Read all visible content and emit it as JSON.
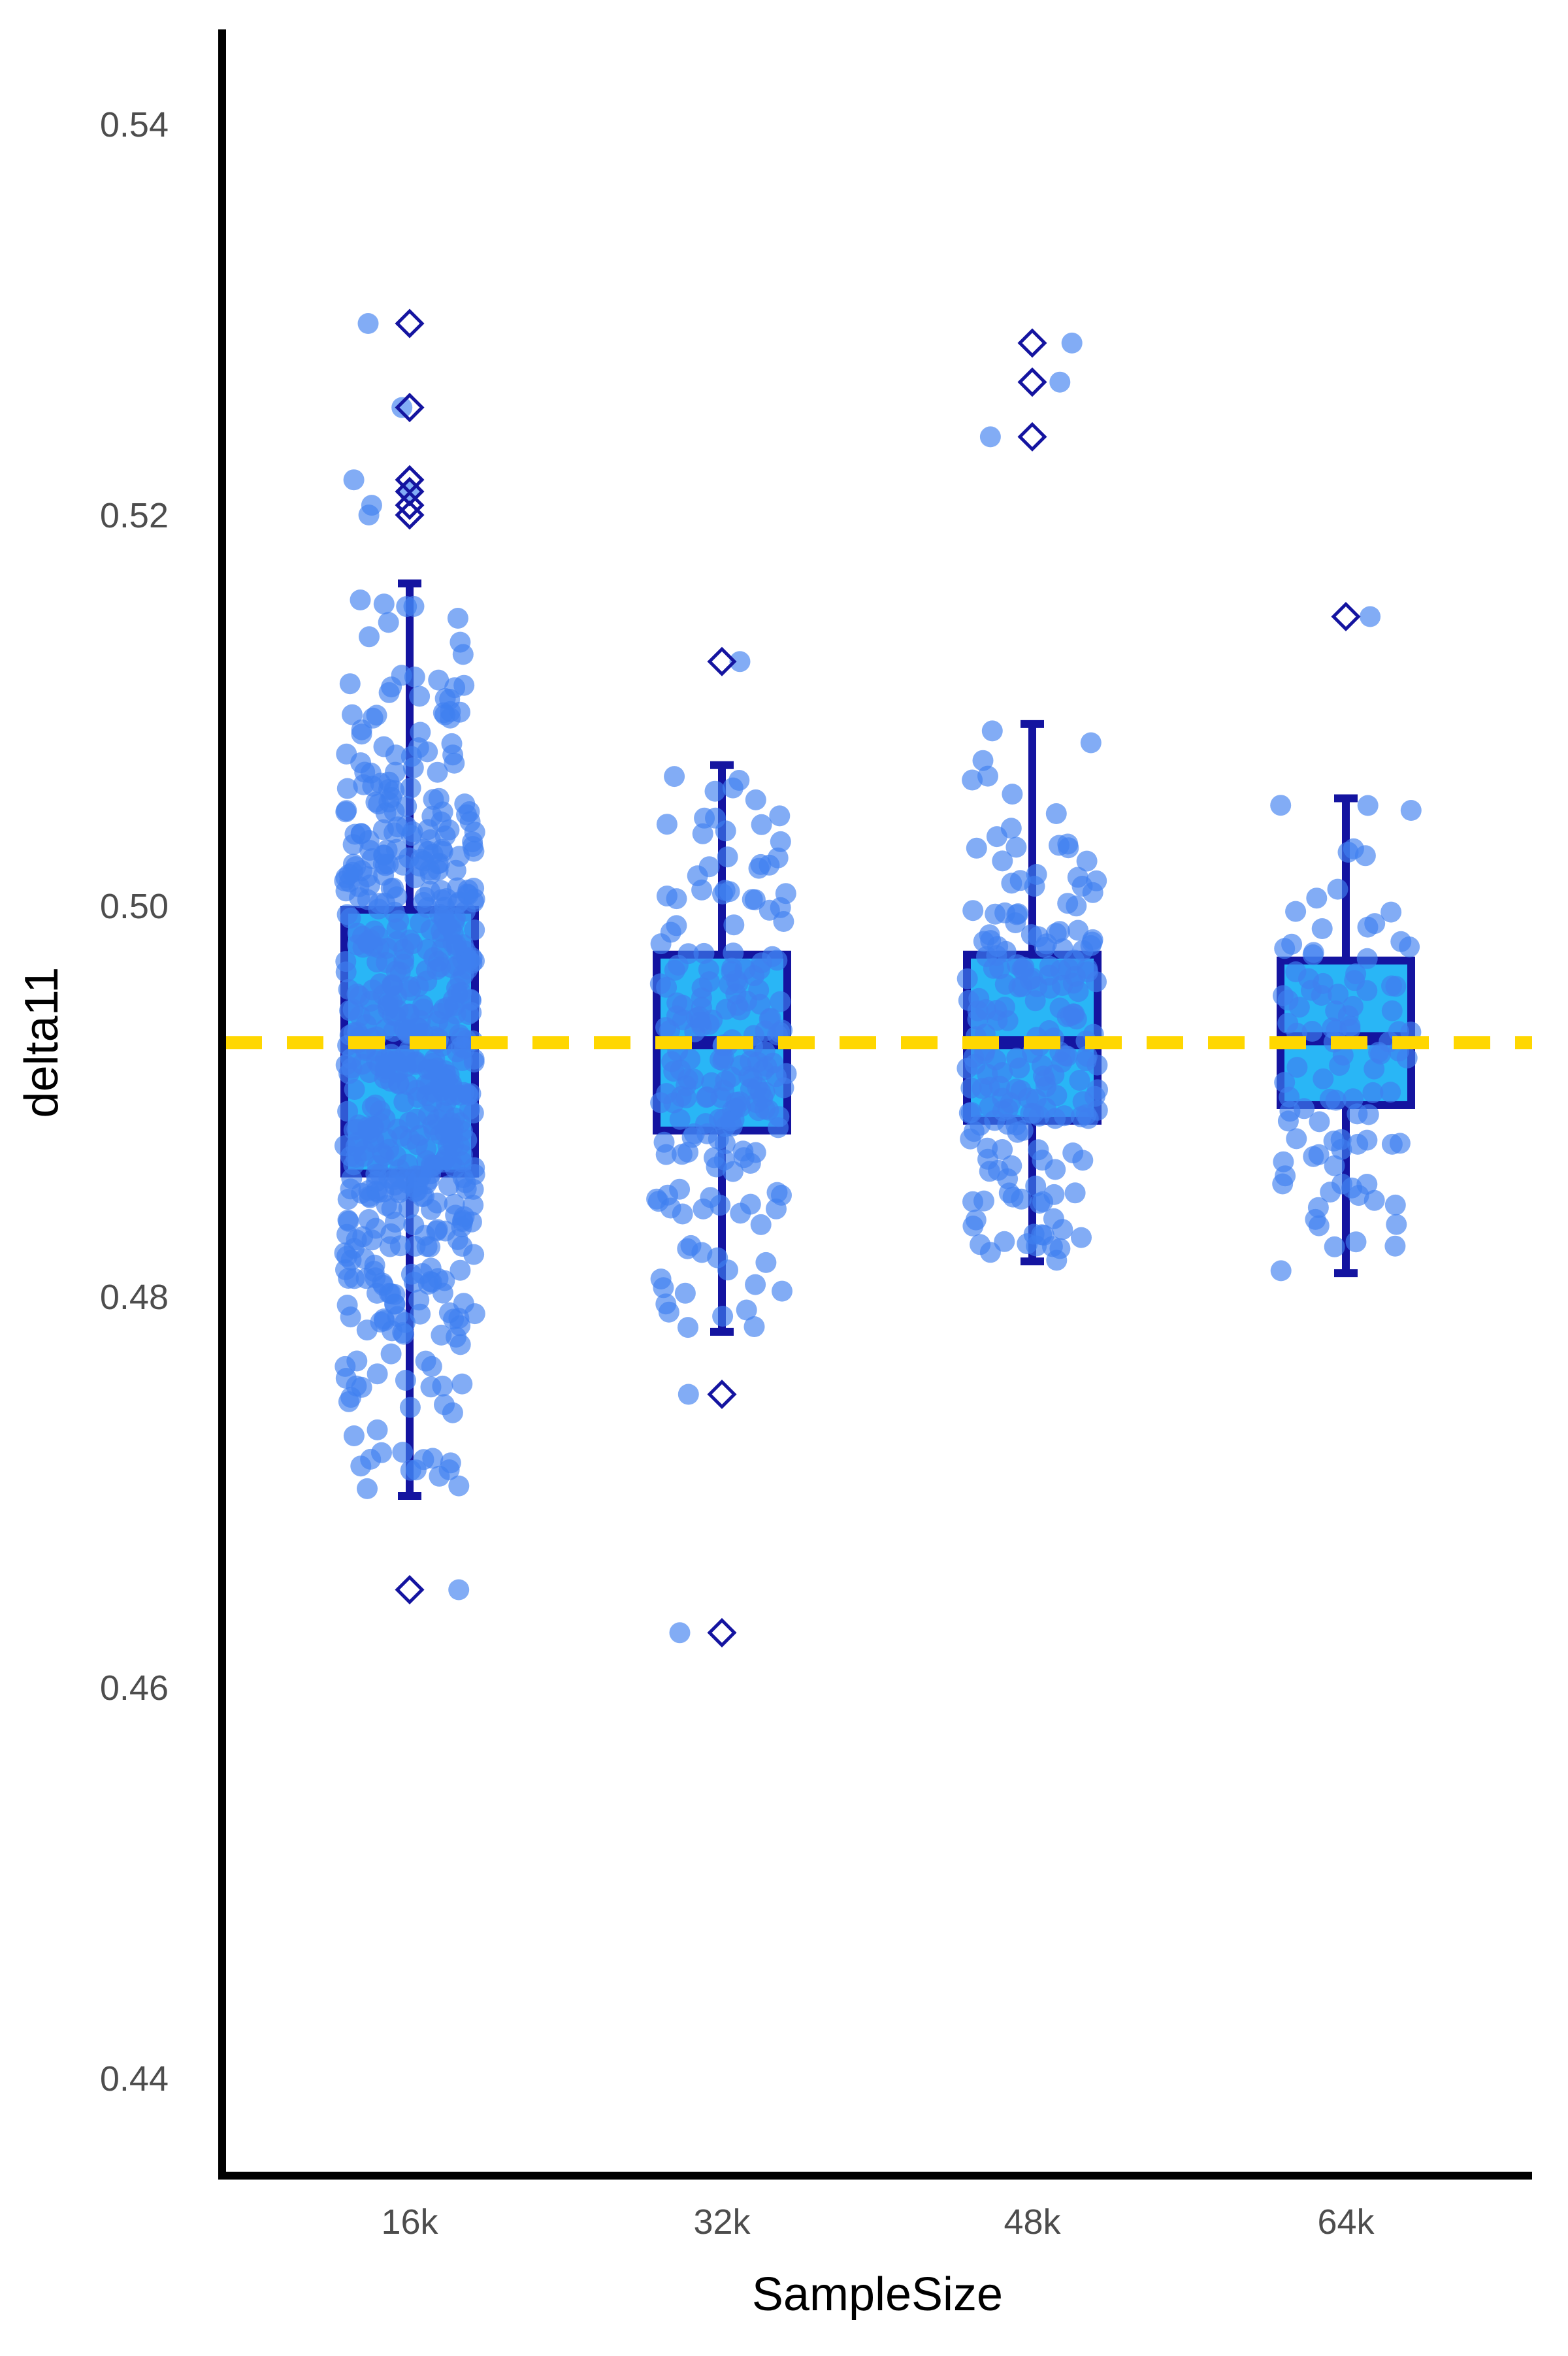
{
  "chart_data": {
    "type": "box",
    "xlabel": "SampleSize",
    "ylabel": "delta11",
    "categories": [
      "16k",
      "32k",
      "48k",
      "64k"
    ],
    "ylim": [
      0.435,
      0.545
    ],
    "yticks": [
      0.44,
      0.46,
      0.48,
      0.5,
      0.52,
      0.54
    ],
    "ytick_labels": [
      "0.44",
      "0.46",
      "0.48",
      "0.50",
      "0.52",
      "0.54"
    ],
    "reference_line": {
      "y": 0.493,
      "style": "dashed",
      "color": "#FFD700"
    },
    "grid": false,
    "colors": {
      "box_fill": "#29B6F6",
      "box_edge": "#1414A0",
      "points": "#3F7FF0",
      "outlier": "#1414A0"
    },
    "boxes": [
      {
        "category": "16k",
        "q1": 0.4863,
        "median": 0.493,
        "q3": 0.4998,
        "whisker_low": 0.4698,
        "whisker_high": 0.5165,
        "outliers": [
          0.5298,
          0.5255,
          0.5218,
          0.5212,
          0.5205,
          0.52,
          0.465
        ]
      },
      {
        "category": "32k",
        "q1": 0.4885,
        "median": 0.493,
        "q3": 0.4975,
        "whisker_low": 0.4782,
        "whisker_high": 0.5072,
        "outliers": [
          0.5125,
          0.475,
          0.4628
        ]
      },
      {
        "category": "48k",
        "q1": 0.489,
        "median": 0.493,
        "q3": 0.4975,
        "whisker_low": 0.4818,
        "whisker_high": 0.5093,
        "outliers": [
          0.5288,
          0.5268,
          0.524
        ]
      },
      {
        "category": "64k",
        "q1": 0.4898,
        "median": 0.4932,
        "q3": 0.4972,
        "whisker_low": 0.4812,
        "whisker_high": 0.5055,
        "outliers": [
          0.5148
        ]
      }
    ],
    "jitter_counts": [
      600,
      200,
      200,
      100
    ]
  }
}
